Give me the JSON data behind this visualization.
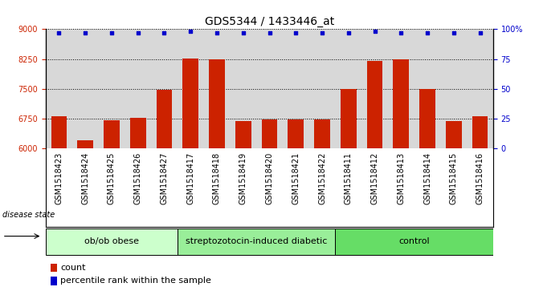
{
  "title": "GDS5344 / 1433446_at",
  "categories": [
    "GSM1518423",
    "GSM1518424",
    "GSM1518425",
    "GSM1518426",
    "GSM1518427",
    "GSM1518417",
    "GSM1518418",
    "GSM1518419",
    "GSM1518420",
    "GSM1518421",
    "GSM1518422",
    "GSM1518411",
    "GSM1518412",
    "GSM1518413",
    "GSM1518414",
    "GSM1518415",
    "GSM1518416"
  ],
  "bar_values": [
    6800,
    6200,
    6700,
    6760,
    7470,
    8270,
    8240,
    6680,
    6720,
    6720,
    6720,
    7500,
    8200,
    8230,
    7500,
    6680,
    6800
  ],
  "percentile_values": [
    97,
    97,
    97,
    97,
    97,
    98,
    97,
    97,
    97,
    97,
    97,
    97,
    98,
    97,
    97,
    97,
    97
  ],
  "groups": [
    {
      "label": "ob/ob obese",
      "start": 0,
      "end": 5,
      "color": "#ccffcc"
    },
    {
      "label": "streptozotocin-induced diabetic",
      "start": 5,
      "end": 11,
      "color": "#99ee99"
    },
    {
      "label": "control",
      "start": 11,
      "end": 17,
      "color": "#66dd66"
    }
  ],
  "ylim_left": [
    6000,
    9000
  ],
  "ylim_right": [
    0,
    100
  ],
  "yticks_left": [
    6000,
    6750,
    7500,
    8250,
    9000
  ],
  "yticks_right": [
    0,
    25,
    50,
    75,
    100
  ],
  "bar_color": "#cc2200",
  "dot_color": "#0000cc",
  "bg_color": "#d8d8d8",
  "title_fontsize": 10,
  "tick_fontsize": 7,
  "label_fontsize": 8,
  "group_label_fontsize": 8
}
